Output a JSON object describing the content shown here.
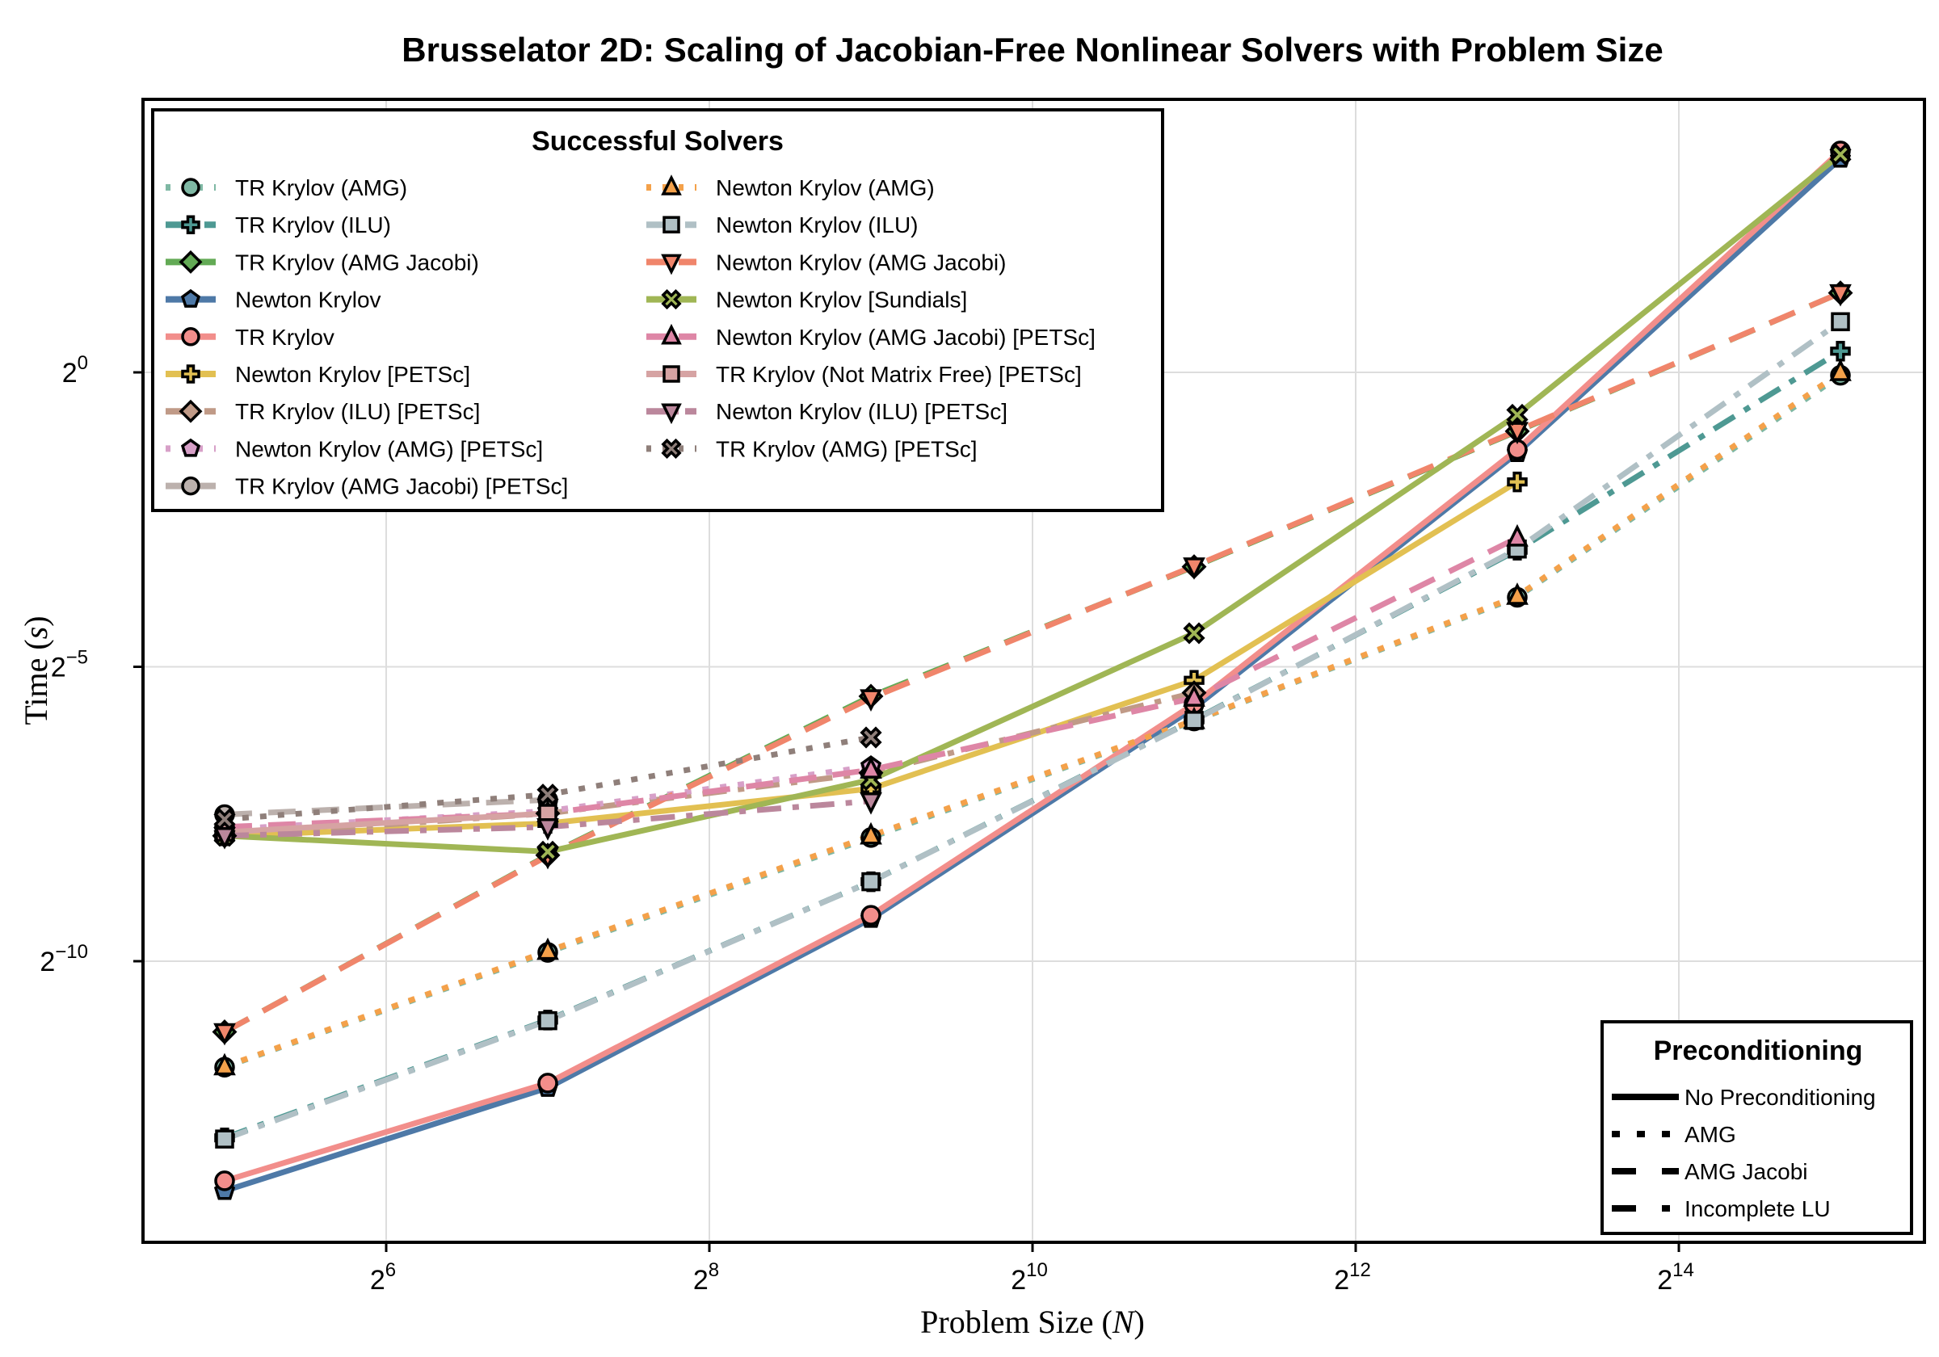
{
  "chart_data": {
    "type": "line",
    "title": "Brusselator 2D: Scaling of Jacobian-Free Nonlinear Solvers with Problem Size",
    "xlabel": "Problem Size (N)",
    "ylabel": "Time (s)",
    "xscale": "log2",
    "yscale": "log2",
    "xlim_log2": [
      4.0,
      15.7
    ],
    "ylim_log2": [
      -14.5,
      4.7
    ],
    "xticks": [
      {
        "exp": "6",
        "value": 64
      },
      {
        "exp": "8",
        "value": 256
      },
      {
        "exp": "10",
        "value": 1024
      },
      {
        "exp": "12",
        "value": 4096
      },
      {
        "exp": "14",
        "value": 16384
      }
    ],
    "yticks": [
      {
        "exp": "0",
        "value": 1
      },
      {
        "exp": "−5",
        "value": 0.03125
      },
      {
        "exp": "−10",
        "value": 0.0009765625
      }
    ],
    "grid": true,
    "x": [
      32,
      128,
      512,
      2048,
      8192,
      32768
    ],
    "legend_solvers": {
      "title": "Successful Solvers",
      "placement": "top-left",
      "columns": 2
    },
    "legend_preconditioning": {
      "title": "Preconditioning",
      "placement": "bottom-right",
      "entries": [
        {
          "label": "No Preconditioning",
          "style": "solid"
        },
        {
          "label": "AMG",
          "style": "dot"
        },
        {
          "label": "AMG Jacobi",
          "style": "dash"
        },
        {
          "label": "Incomplete LU",
          "style": "dashdot"
        }
      ]
    },
    "series": [
      {
        "name": "TR Krylov (AMG)",
        "color": "#7fb8a4",
        "style": "dot",
        "marker": "circle",
        "log2_time": [
          -11.8,
          -9.85,
          -7.9,
          -5.92,
          -3.82,
          -0.05
        ]
      },
      {
        "name": "TR Krylov (ILU)",
        "color": "#4e9993",
        "style": "dashdot",
        "marker": "cross",
        "log2_time": [
          -13.0,
          -11.0,
          -8.65,
          -5.9,
          -3.02,
          0.36
        ]
      },
      {
        "name": "TR Krylov (AMG Jacobi)",
        "color": "#63aa55",
        "style": "dash",
        "marker": "diamond",
        "log2_time": [
          -11.2,
          -8.2,
          -5.5,
          -3.3,
          -1.0,
          1.35
        ]
      },
      {
        "name": "Newton Krylov",
        "color": "#4e79a7",
        "style": "solid",
        "marker": "pentagon",
        "log2_time": [
          -13.9,
          -12.15,
          -9.28,
          -5.7,
          -1.37,
          3.63
        ]
      },
      {
        "name": "TR Krylov",
        "color": "#f28e8b",
        "style": "solid",
        "marker": "circle",
        "log2_time": [
          -13.73,
          -12.07,
          -9.22,
          -5.63,
          -1.31,
          3.76
        ]
      },
      {
        "name": "Newton Krylov [PETSc]",
        "color": "#e2c052",
        "style": "solid",
        "marker": "cross",
        "log2_time": [
          -7.87,
          -7.66,
          -7.07,
          -5.23,
          -1.86,
          null
        ]
      },
      {
        "name": "TR Krylov (ILU) [PETSc]",
        "color": "#c09a87",
        "style": "dashdot",
        "marker": "diamond",
        "log2_time": [
          -7.87,
          -7.49,
          -6.8,
          -5.44,
          null,
          null
        ]
      },
      {
        "name": "Newton Krylov (AMG) [PETSc]",
        "color": "#d7a0c8",
        "style": "dot",
        "marker": "pentagon",
        "log2_time": [
          -7.76,
          -7.45,
          -6.69,
          null,
          null,
          null
        ]
      },
      {
        "name": "TR Krylov (AMG Jacobi) [PETSc]",
        "color": "#bcb1ad",
        "style": "dash",
        "marker": "circle",
        "log2_time": [
          -7.51,
          -7.26,
          null,
          null,
          null,
          null
        ]
      },
      {
        "name": "Newton Krylov (AMG)",
        "color": "#f4a14a",
        "style": "dot",
        "marker": "triangle-up",
        "log2_time": [
          -11.79,
          -9.83,
          -7.87,
          -5.91,
          -3.8,
          0.0
        ]
      },
      {
        "name": "Newton Krylov (ILU)",
        "color": "#b0c0c5",
        "style": "dashdot",
        "marker": "square",
        "log2_time": [
          -13.02,
          -11.01,
          -8.65,
          -5.91,
          -3.0,
          0.86
        ]
      },
      {
        "name": "Newton Krylov (AMG Jacobi)",
        "color": "#f0856b",
        "style": "dash",
        "marker": "triangle-down",
        "log2_time": [
          -11.2,
          -8.21,
          -5.53,
          -3.29,
          -0.99,
          1.35
        ]
      },
      {
        "name": "Newton Krylov [Sundials]",
        "color": "#a0b655",
        "style": "solid",
        "marker": "x",
        "log2_time": [
          -7.87,
          -8.14,
          -6.92,
          -4.43,
          -0.72,
          3.7
        ]
      },
      {
        "name": "Newton Krylov (AMG Jacobi) [PETSc]",
        "color": "#de86a6",
        "style": "dash",
        "marker": "triangle-up",
        "log2_time": [
          -7.72,
          -7.49,
          -6.75,
          -5.53,
          -2.81,
          null
        ]
      },
      {
        "name": "TR Krylov (Not Matrix Free) [PETSc]",
        "color": "#d6a3a3",
        "style": "solid",
        "marker": "square",
        "log2_time": [
          -7.81,
          -7.49,
          null,
          null,
          null,
          null
        ]
      },
      {
        "name": "Newton Krylov (ILU) [PETSc]",
        "color": "#bb879c",
        "style": "dashdot",
        "marker": "triangle-down",
        "log2_time": [
          -7.87,
          -7.72,
          -7.28,
          null,
          null,
          null
        ]
      },
      {
        "name": "TR Krylov (AMG) [PETSc]",
        "color": "#8f7f7a",
        "style": "dot",
        "marker": "x",
        "log2_time": [
          -7.59,
          -7.17,
          -6.2,
          null,
          null,
          null
        ]
      }
    ]
  }
}
